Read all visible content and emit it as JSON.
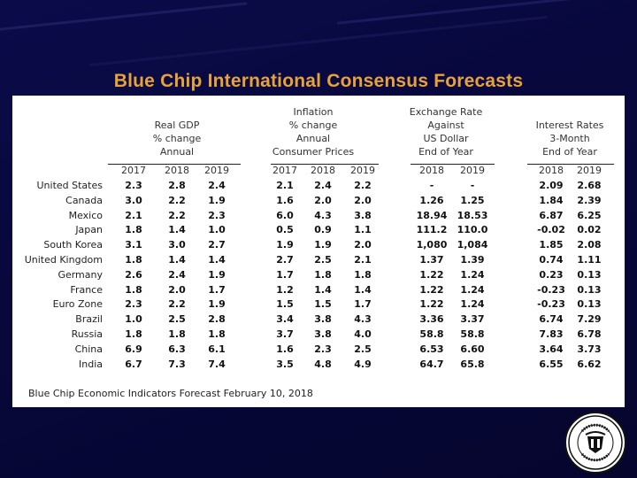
{
  "slide": {
    "title": "Blue Chip International Consensus Forecasts"
  },
  "table": {
    "groups": [
      {
        "lines": [
          "Real GDP",
          "% change",
          "Annual"
        ]
      },
      {
        "lines": [
          "Inflation",
          "% change",
          "Annual",
          "Consumer Prices"
        ]
      },
      {
        "lines": [
          "Exchange Rate",
          "Against",
          "US Dollar",
          "End of Year"
        ]
      },
      {
        "lines": [
          "Interest Rates",
          "3-Month",
          "End of Year"
        ]
      }
    ],
    "years": [
      "2017",
      "2018",
      "2019",
      "2017",
      "2018",
      "2019",
      "2018",
      "2019",
      "2018",
      "2019"
    ],
    "rows": [
      {
        "country": "United States",
        "values": [
          "2.3",
          "2.8",
          "2.4",
          "2.1",
          "2.4",
          "2.2",
          "-",
          "-",
          "2.09",
          "2.68"
        ]
      },
      {
        "country": "Canada",
        "values": [
          "3.0",
          "2.2",
          "1.9",
          "1.6",
          "2.0",
          "2.0",
          "1.26",
          "1.25",
          "1.84",
          "2.39"
        ]
      },
      {
        "country": "Mexico",
        "values": [
          "2.1",
          "2.2",
          "2.3",
          "6.0",
          "4.3",
          "3.8",
          "18.94",
          "18.53",
          "6.87",
          "6.25"
        ]
      },
      {
        "country": "Japan",
        "values": [
          "1.8",
          "1.4",
          "1.0",
          "0.5",
          "0.9",
          "1.1",
          "111.2",
          "110.0",
          "-0.02",
          "0.02"
        ]
      },
      {
        "country": "South Korea",
        "values": [
          "3.1",
          "3.0",
          "2.7",
          "1.9",
          "1.9",
          "2.0",
          "1,080",
          "1,084",
          "1.85",
          "2.08"
        ]
      },
      {
        "country": "United Kingdom",
        "values": [
          "1.8",
          "1.4",
          "1.4",
          "2.7",
          "2.5",
          "2.1",
          "1.37",
          "1.39",
          "0.74",
          "1.11"
        ]
      },
      {
        "country": "Germany",
        "values": [
          "2.6",
          "2.4",
          "1.9",
          "1.7",
          "1.8",
          "1.8",
          "1.22",
          "1.24",
          "0.23",
          "0.13"
        ]
      },
      {
        "country": "France",
        "values": [
          "1.8",
          "2.0",
          "1.7",
          "1.2",
          "1.4",
          "1.4",
          "1.22",
          "1.24",
          "-0.23",
          "0.13"
        ]
      },
      {
        "country": "Euro Zone",
        "values": [
          "2.3",
          "2.2",
          "1.9",
          "1.5",
          "1.5",
          "1.7",
          "1.22",
          "1.24",
          "-0.23",
          "0.13"
        ]
      },
      {
        "country": "Brazil",
        "values": [
          "1.0",
          "2.5",
          "2.8",
          "3.4",
          "3.8",
          "4.3",
          "3.36",
          "3.37",
          "6.74",
          "7.29"
        ]
      },
      {
        "country": "Russia",
        "values": [
          "1.8",
          "1.8",
          "1.8",
          "3.7",
          "3.8",
          "4.0",
          "58.8",
          "58.8",
          "7.83",
          "6.78"
        ]
      },
      {
        "country": "China",
        "values": [
          "6.9",
          "6.3",
          "6.1",
          "1.6",
          "2.3",
          "2.5",
          "6.53",
          "6.60",
          "3.64",
          "3.73"
        ]
      },
      {
        "country": "India",
        "values": [
          "6.7",
          "7.3",
          "7.4",
          "3.5",
          "4.8",
          "4.9",
          "64.7",
          "65.8",
          "6.55",
          "6.62"
        ]
      }
    ],
    "footer": "Blue Chip Economic Indicators Forecast February 10, 2018"
  },
  "seal": {
    "icon": "federal-reserve-seal-icon"
  }
}
